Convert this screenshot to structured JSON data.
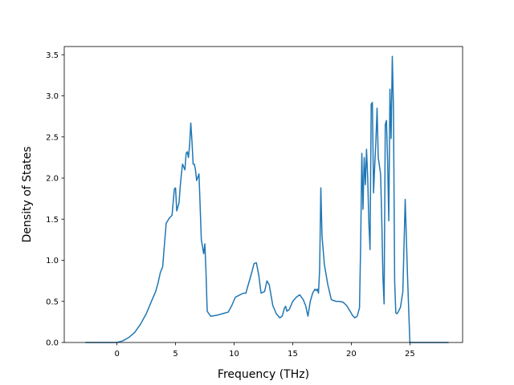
{
  "chart_data": {
    "type": "line",
    "title": "",
    "xlabel": "Frequency (THz)",
    "ylabel": "Density of States",
    "xlim": [
      -4.5,
      29.5
    ],
    "ylim": [
      0,
      3.6
    ],
    "xticks": [
      0,
      5,
      10,
      15,
      20,
      25
    ],
    "yticks": [
      0.0,
      0.5,
      1.0,
      1.5,
      2.0,
      2.5,
      3.0,
      3.5
    ],
    "ytick_labels": [
      "0.0",
      "0.5",
      "1.0",
      "1.5",
      "2.0",
      "2.5",
      "3.0",
      "3.5"
    ],
    "grid": false,
    "legend": "none",
    "series": [
      {
        "color": "#1f77b4",
        "x": [
          -2.7,
          0.0,
          0.5,
          1.0,
          1.5,
          2.0,
          2.5,
          3.0,
          3.3,
          3.5,
          3.7,
          3.9,
          4.0,
          4.2,
          4.5,
          4.6,
          4.7,
          4.9,
          5.0,
          5.1,
          5.3,
          5.4,
          5.5,
          5.6,
          5.8,
          5.9,
          6.0,
          6.1,
          6.2,
          6.3,
          6.4,
          6.5,
          6.6,
          6.7,
          6.8,
          7.0,
          7.2,
          7.4,
          7.5,
          7.6,
          7.7,
          8.0,
          8.5,
          9.0,
          9.5,
          9.8,
          10.1,
          10.5,
          10.8,
          11.0,
          11.3,
          11.5,
          11.7,
          11.9,
          12.1,
          12.3,
          12.6,
          12.8,
          13.0,
          13.3,
          13.6,
          13.9,
          14.1,
          14.3,
          14.4,
          14.5,
          14.7,
          15.0,
          15.3,
          15.6,
          15.9,
          16.1,
          16.3,
          16.5,
          16.7,
          16.9,
          17.0,
          17.1,
          17.2,
          17.3,
          17.4,
          17.5,
          17.7,
          18.0,
          18.3,
          18.7,
          19.0,
          19.3,
          19.6,
          19.9,
          20.1,
          20.3,
          20.5,
          20.7,
          20.8,
          20.9,
          21.0,
          21.1,
          21.2,
          21.3,
          21.4,
          21.5,
          21.6,
          21.7,
          21.8,
          21.9,
          22.0,
          22.1,
          22.2,
          22.3,
          22.5,
          22.6,
          22.7,
          22.8,
          22.9,
          23.0,
          23.1,
          23.2,
          23.3,
          23.4,
          23.5,
          23.6,
          23.7,
          23.8,
          23.9,
          24.0,
          24.2,
          24.4,
          24.6,
          24.8,
          25.0,
          25.2,
          25.4,
          25.6,
          25.7,
          25.8,
          26.5,
          28.3
        ],
        "y": [
          0.0,
          0.0,
          0.02,
          0.06,
          0.12,
          0.22,
          0.35,
          0.52,
          0.62,
          0.72,
          0.85,
          0.92,
          1.1,
          1.45,
          1.52,
          1.53,
          1.55,
          1.87,
          1.88,
          1.6,
          1.7,
          1.9,
          2.05,
          2.17,
          2.1,
          2.3,
          2.32,
          2.25,
          2.4,
          2.67,
          2.45,
          2.17,
          2.17,
          2.1,
          1.97,
          2.05,
          1.25,
          1.08,
          1.2,
          0.85,
          0.38,
          0.32,
          0.33,
          0.35,
          0.37,
          0.45,
          0.55,
          0.58,
          0.6,
          0.6,
          0.75,
          0.85,
          0.96,
          0.97,
          0.82,
          0.6,
          0.62,
          0.75,
          0.7,
          0.45,
          0.35,
          0.3,
          0.32,
          0.42,
          0.44,
          0.38,
          0.4,
          0.5,
          0.55,
          0.58,
          0.52,
          0.45,
          0.32,
          0.5,
          0.6,
          0.65,
          0.63,
          0.65,
          0.6,
          0.9,
          1.88,
          1.3,
          0.95,
          0.7,
          0.52,
          0.5,
          0.5,
          0.49,
          0.45,
          0.38,
          0.33,
          0.3,
          0.32,
          0.42,
          1.2,
          2.3,
          1.62,
          2.25,
          1.92,
          2.35,
          2.0,
          1.45,
          1.13,
          2.9,
          2.92,
          1.82,
          2.15,
          2.45,
          2.85,
          2.25,
          2.05,
          1.5,
          0.8,
          0.47,
          2.65,
          2.7,
          2.2,
          1.48,
          3.08,
          2.48,
          3.48,
          2.85,
          0.75,
          0.36,
          0.35,
          0.37,
          0.43,
          0.62,
          1.74,
          0.8,
          0.0,
          0.0,
          0.0,
          0.0,
          0.0,
          0.0,
          0.0,
          0.0
        ]
      }
    ]
  }
}
